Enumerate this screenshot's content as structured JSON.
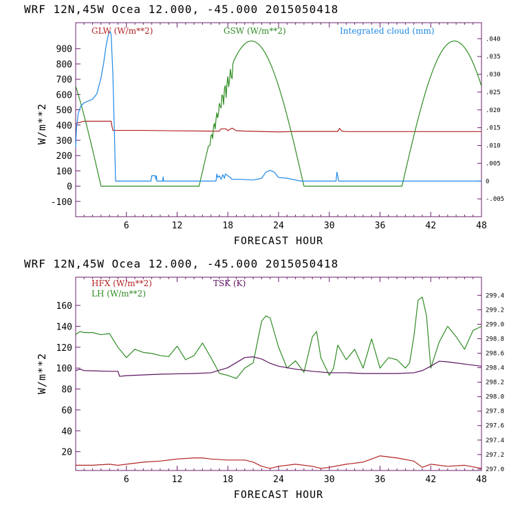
{
  "chart_data": [
    {
      "type": "line",
      "title": "WRF   12N,45W Ocea  12.000, -45.000  2015050418",
      "xlabel": "FORECAST HOUR",
      "ylabel": "W/m**2",
      "xlim": [
        0,
        48
      ],
      "ylim": [
        -200,
        1070
      ],
      "x_ticks": [
        "6",
        "12",
        "18",
        "24",
        "30",
        "36",
        "42",
        "48"
      ],
      "y_ticks": [
        "-100",
        "0",
        "100",
        "200",
        "300",
        "400",
        "500",
        "600",
        "700",
        "800",
        "900"
      ],
      "y2lim": [
        -0.01,
        0.0445
      ],
      "y2_ticks": [
        "-.005",
        "0",
        ".005",
        ".010",
        ".015",
        ".020",
        ".025",
        ".030",
        ".035",
        ".040"
      ],
      "colors": {
        "GLW": "#b22222",
        "GSW": "#2e8b22",
        "cloud": "#1e88e5"
      },
      "legend_labels": [
        "GLW (W/m**2)",
        "GSW (W/m**2)",
        "Integrated cloud (mm)"
      ],
      "series": [
        {
          "name": "GLW (W/m**2)",
          "axis": "left",
          "x": [
            0,
            1,
            3,
            4.2,
            4.3,
            4.4,
            6,
            8,
            12,
            16,
            17,
            17.2,
            17.8,
            18,
            18.5,
            19,
            20,
            24,
            26,
            30,
            31,
            31.2,
            31.5,
            32,
            36,
            42,
            48
          ],
          "y": [
            410,
            425,
            425,
            425,
            390,
            365,
            365,
            365,
            362,
            360,
            360,
            375,
            375,
            363,
            380,
            363,
            360,
            355,
            358,
            358,
            358,
            378,
            360,
            357,
            357,
            357,
            357
          ]
        },
        {
          "name": "GSW (W/m**2)",
          "axis": "left",
          "generator": "solar",
          "peak": 950,
          "peak_hour": 20.8,
          "halfwidth": 6.2,
          "rise_noise_from": 15.8,
          "rise_noise_to": 18.6
        },
        {
          "name": "Integrated cloud (mm)",
          "axis": "right",
          "x": [
            0,
            0.1,
            0.3,
            0.6,
            1,
            1.5,
            2,
            2.5,
            3,
            3.3,
            3.6,
            3.9,
            4.1,
            4.2,
            4.4,
            4.6,
            4.7,
            4.72,
            8.9,
            9.0,
            9.05,
            9.4,
            9.5,
            9.55,
            9.6,
            10.3,
            10.35,
            10.4,
            16.6,
            16.7,
            16.8,
            17.0,
            17.2,
            17.4,
            17.6,
            17.7,
            18.0,
            18.3,
            18.5,
            19.5,
            21,
            22,
            22.5,
            23,
            23.5,
            24,
            25,
            26,
            26.6,
            30.8,
            30.9,
            31.0,
            31.1,
            48
          ],
          "y": [
            0.0095,
            0.015,
            0.019,
            0.021,
            0.022,
            0.0225,
            0.023,
            0.0245,
            0.029,
            0.033,
            0.038,
            0.0415,
            0.042,
            0.041,
            0.03,
            0.012,
            0.002,
            0.0,
            0.0,
            0.0015,
            0.0015,
            0.0015,
            0.0005,
            0.0015,
            0.0,
            0.0,
            0.0012,
            0.0,
            0.0,
            0.002,
            0.001,
            0.0015,
            0.0005,
            0.0018,
            0.0008,
            0.002,
            0.0015,
            0.001,
            0.0005,
            0.0005,
            0.0003,
            0.0008,
            0.0025,
            0.003,
            0.0025,
            0.001,
            0.0008,
            0.0003,
            0.0,
            0.0,
            0.0025,
            0.0015,
            0.0,
            0.0
          ]
        }
      ]
    },
    {
      "type": "line",
      "title": "WRF   12N,45W Ocea  12.000, -45.000  2015050418",
      "xlabel": "FORECAST HOUR",
      "ylabel": "W/m**2",
      "xlim": [
        0,
        48
      ],
      "ylim": [
        2,
        187
      ],
      "x_ticks": [
        "6",
        "12",
        "18",
        "24",
        "30",
        "36",
        "42",
        "48"
      ],
      "y_ticks": [
        "20",
        "40",
        "60",
        "80",
        "100",
        "120",
        "140",
        "160"
      ],
      "y2lim": [
        296.98,
        299.65
      ],
      "y2_ticks": [
        "297.0",
        "297.2",
        "297.4",
        "297.6",
        "297.8",
        "298.0",
        "298.2",
        "298.4",
        "298.6",
        "298.8",
        "299.0",
        "299.2",
        "299.4"
      ],
      "colors": {
        "HFX": "#b22222",
        "LH": "#2e8b22",
        "TSK": "#5b1060"
      },
      "legend_labels": [
        "HFX (W/m**2)",
        "LH  (W/m**2)",
        "TSK (K)"
      ],
      "series": [
        {
          "name": "HFX (W/m**2)",
          "axis": "left",
          "x": [
            0,
            2,
            4,
            5,
            6,
            8,
            10,
            12,
            14,
            15,
            16,
            18,
            20,
            21,
            22,
            23,
            24,
            26,
            28,
            29,
            30,
            32,
            34,
            35,
            36,
            38,
            40,
            41,
            42,
            44,
            46,
            48
          ],
          "y": [
            7,
            7,
            8,
            7,
            8,
            10,
            11,
            13,
            14,
            14,
            13,
            12,
            12,
            10,
            6,
            4,
            6,
            8,
            6,
            4,
            5,
            8,
            10,
            13,
            16,
            14,
            11,
            5,
            8,
            6,
            7,
            4
          ]
        },
        {
          "name": "LH  (W/m**2)",
          "axis": "left",
          "x": [
            0,
            0.5,
            1,
            2,
            3,
            4,
            5,
            6,
            7,
            8,
            9,
            10,
            11,
            12,
            13,
            14,
            15,
            16,
            17,
            18,
            19,
            20,
            21,
            22,
            22.5,
            23,
            24,
            25,
            26,
            27,
            28,
            28.5,
            29,
            30,
            30.5,
            31,
            32,
            33,
            34,
            35,
            36,
            37,
            38,
            39,
            39.5,
            40,
            40.5,
            41,
            41.5,
            42,
            43,
            44,
            45,
            46,
            47,
            48
          ],
          "y": [
            132,
            135,
            134,
            134,
            132,
            133,
            120,
            110,
            118,
            115,
            114,
            112,
            111,
            121,
            108,
            112,
            124,
            110,
            95,
            93,
            90,
            100,
            105,
            145,
            150,
            148,
            120,
            100,
            107,
            96,
            130,
            135,
            110,
            93,
            100,
            122,
            108,
            118,
            100,
            128,
            100,
            110,
            108,
            100,
            105,
            130,
            165,
            168,
            150,
            100,
            125,
            140,
            130,
            118,
            136,
            140
          ]
        },
        {
          "name": "TSK (K)",
          "axis": "right",
          "x": [
            0,
            0.5,
            1,
            4,
            5,
            5.2,
            6,
            10,
            14,
            16,
            18,
            20,
            21,
            22,
            23,
            24,
            26,
            28,
            30,
            32,
            34,
            36,
            38,
            40,
            41,
            42,
            43,
            44,
            46,
            48
          ],
          "y": [
            298.36,
            298.38,
            298.36,
            298.35,
            298.35,
            298.28,
            298.29,
            298.31,
            298.32,
            298.33,
            298.4,
            298.54,
            298.55,
            298.52,
            298.46,
            298.42,
            298.38,
            298.35,
            298.33,
            298.33,
            298.32,
            298.32,
            298.32,
            298.33,
            298.36,
            298.42,
            298.49,
            298.48,
            298.45,
            298.42
          ]
        }
      ]
    }
  ]
}
